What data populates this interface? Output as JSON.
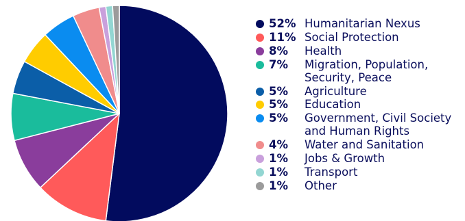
{
  "chart_data": {
    "type": "pie",
    "slices": [
      {
        "label": "Humanitarian Nexus",
        "value": 52,
        "value_label": "52%",
        "color": "#020b5e"
      },
      {
        "label": "Social Protection",
        "value": 11,
        "value_label": "11%",
        "color": "#ff5a5a"
      },
      {
        "label": "Health",
        "value": 8,
        "value_label": "8%",
        "color": "#8a3d9c"
      },
      {
        "label": "Migration, Population, Security, Peace",
        "value": 7,
        "value_label": "7%",
        "color": "#1abc9c"
      },
      {
        "label": "Agriculture",
        "value": 5,
        "value_label": "5%",
        "color": "#0b5ea8"
      },
      {
        "label": "Education",
        "value": 5,
        "value_label": "5%",
        "color": "#ffcc00"
      },
      {
        "label": "Government, Civil Society and Human Rights",
        "value": 5,
        "value_label": "5%",
        "color": "#0a8cf0"
      },
      {
        "label": "Water and Sanitation",
        "value": 4,
        "value_label": "4%",
        "color": "#f08c8c"
      },
      {
        "label": "Jobs & Growth",
        "value": 1,
        "value_label": "1%",
        "color": "#c9a0dc"
      },
      {
        "label": "Transport",
        "value": 1,
        "value_label": "1%",
        "color": "#93d6d2"
      },
      {
        "label": "Other",
        "value": 1,
        "value_label": "1%",
        "color": "#9b9b9b"
      }
    ],
    "legend_position": "right"
  }
}
